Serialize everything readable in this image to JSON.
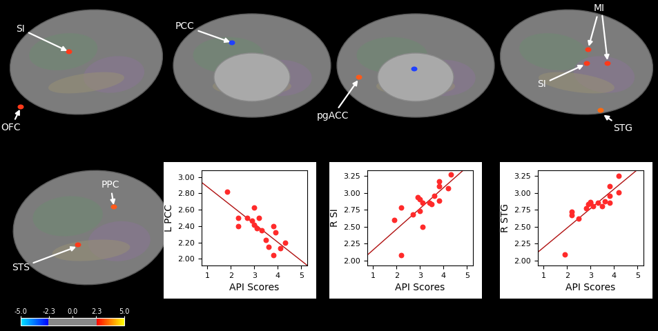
{
  "chart_data": [
    {
      "type": "scatter",
      "x_label": "API Scores",
      "y_label": "L PCC",
      "color": "#ff2a2a",
      "marker": "o",
      "x": [
        1.85,
        2.3,
        2.3,
        2.7,
        2.9,
        3.0,
        3.0,
        3.1,
        3.2,
        3.3,
        3.5,
        3.6,
        3.8,
        3.8,
        3.9,
        4.1,
        4.3
      ],
      "values": [
        2.82,
        2.5,
        2.4,
        2.5,
        2.47,
        2.63,
        2.42,
        2.37,
        2.5,
        2.35,
        2.23,
        2.15,
        2.4,
        2.05,
        2.32,
        2.13,
        2.2
      ],
      "xlim": [
        0.75,
        5.25
      ],
      "xticks": [
        1,
        2,
        3,
        4,
        5
      ],
      "ylim": [
        1.92,
        3.08
      ],
      "yticks": [
        {
          "value": 2.0,
          "label": "2.00"
        },
        {
          "value": 2.2,
          "label": "2.20"
        },
        {
          "value": 2.4,
          "label": "2.40"
        },
        {
          "value": 2.6,
          "label": "2.60"
        },
        {
          "value": 2.8,
          "label": "2.80"
        },
        {
          "value": 3.0,
          "label": "3.00"
        }
      ]
    },
    {
      "type": "scatter",
      "x_label": "API Scores",
      "y_label": "R SI",
      "color": "#ff2a2a",
      "marker": "o",
      "x": [
        1.9,
        2.2,
        2.2,
        2.7,
        2.9,
        3.0,
        3.0,
        3.1,
        3.1,
        3.4,
        3.5,
        3.6,
        3.8,
        3.8,
        3.8,
        4.2,
        4.3
      ],
      "values": [
        2.6,
        2.78,
        2.08,
        2.68,
        2.93,
        2.9,
        2.73,
        2.5,
        2.85,
        2.85,
        2.83,
        2.95,
        3.17,
        3.1,
        2.88,
        3.07,
        3.27
      ],
      "xlim": [
        0.75,
        5.25
      ],
      "xticks": [
        1,
        2,
        3,
        4,
        5
      ],
      "ylim": [
        1.93,
        3.33
      ],
      "yticks": [
        {
          "value": 2.0,
          "label": "2.00"
        },
        {
          "value": 2.25,
          "label": "2.25"
        },
        {
          "value": 2.5,
          "label": "2.50"
        },
        {
          "value": 2.75,
          "label": "2.75"
        },
        {
          "value": 3.0,
          "label": "3.00"
        },
        {
          "value": 3.25,
          "label": "3.25"
        }
      ]
    },
    {
      "type": "scatter",
      "x_label": "API Scores",
      "y_label": "R STG",
      "color": "#ff2a2a",
      "marker": "o",
      "x": [
        1.9,
        2.2,
        2.2,
        2.5,
        2.8,
        2.9,
        3.0,
        3.0,
        3.1,
        3.3,
        3.5,
        3.6,
        3.8,
        3.8,
        3.8,
        4.2,
        4.2
      ],
      "values": [
        2.09,
        2.72,
        2.67,
        2.62,
        2.77,
        2.83,
        2.85,
        2.86,
        2.8,
        2.85,
        2.8,
        2.87,
        2.95,
        2.85,
        3.1,
        3.25,
        3.01
      ],
      "xlim": [
        0.75,
        5.25
      ],
      "xticks": [
        1,
        2,
        3,
        4,
        5
      ],
      "ylim": [
        1.93,
        3.33
      ],
      "yticks": [
        {
          "value": 2.0,
          "label": "2.00"
        },
        {
          "value": 2.25,
          "label": "2.25"
        },
        {
          "value": 2.5,
          "label": "2.50"
        },
        {
          "value": 2.75,
          "label": "2.75"
        },
        {
          "value": 3.0,
          "label": "3.00"
        },
        {
          "value": 3.25,
          "label": "3.25"
        }
      ]
    }
  ],
  "brain_labels": [
    "SI",
    "OFC",
    "PCC",
    "pgACC",
    "MI",
    "SI",
    "STG",
    "PPC",
    "STS"
  ],
  "colorbar": {
    "range": [
      -5.0,
      5.0
    ],
    "ticks": [
      -5.0,
      -2.3,
      0.0,
      2.3,
      5.0
    ]
  }
}
